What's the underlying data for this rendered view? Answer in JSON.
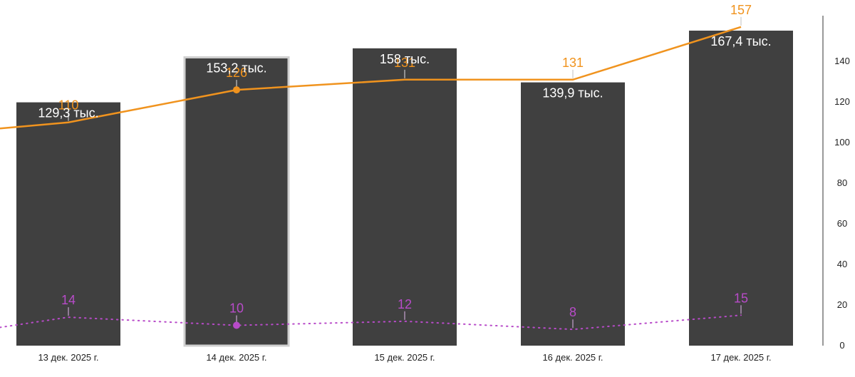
{
  "chart_data": {
    "type": "bar",
    "categories": [
      "13 дек. 2025 г.",
      "14 дек. 2025 г.",
      "15 дек. 2025 г.",
      "16 дек. 2025 г.",
      "17 дек. 2025 г."
    ],
    "bars": {
      "values": [
        129300,
        153200,
        158000,
        139900,
        167400
      ],
      "labels": [
        "129,3 тыс.",
        "153,2 тыс.",
        "158 тыс.",
        "139,9 тыс.",
        "167,4 тыс."
      ],
      "color": "#404040",
      "ylim": [
        0,
        178000
      ],
      "highlighted_index": 1
    },
    "series": [
      {
        "type": "line",
        "values": [
          110,
          126,
          131,
          131,
          157
        ],
        "color": "#f0931e",
        "style": "solid",
        "start_value": 107,
        "highlighted_index": 1
      },
      {
        "type": "line",
        "values": [
          14,
          10,
          12,
          8,
          15
        ],
        "color": "#b84bc9",
        "style": "dotted",
        "start_value": 9,
        "highlighted_index": 1
      }
    ],
    "right_axis": {
      "ticks": [
        "0",
        "20",
        "40",
        "60",
        "80",
        "100",
        "120",
        "140"
      ],
      "tick_values": [
        0,
        20,
        40,
        60,
        80,
        100,
        120,
        140
      ],
      "ylim": [
        0,
        165
      ]
    },
    "grid": false,
    "legend": "none"
  }
}
